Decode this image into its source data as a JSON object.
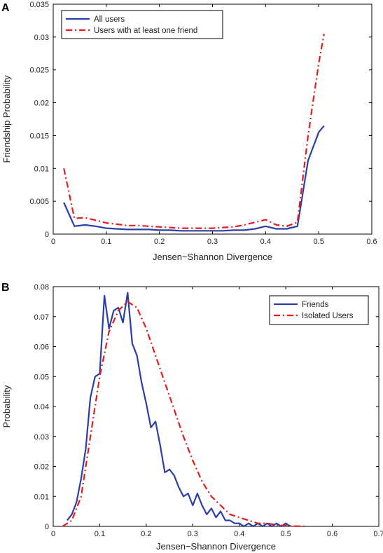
{
  "chart_data": [
    {
      "type": "line",
      "panel_label": "A",
      "xlabel": "Jensen−Shannon Divergence",
      "ylabel": "Friendship Probability",
      "xlim": [
        0,
        0.6
      ],
      "ylim": [
        0,
        0.035
      ],
      "xticks": [
        "0",
        "0.1",
        "0.2",
        "0.3",
        "0.4",
        "0.5",
        "0.6"
      ],
      "yticks": [
        "0",
        "0.005",
        "0.01",
        "0.015",
        "0.02",
        "0.025",
        "0.03",
        "0.035"
      ],
      "legend_position": "top-left",
      "grid": false,
      "series": [
        {
          "name": "All users",
          "color": "#2b3ea8",
          "style": "solid",
          "x": [
            0.02,
            0.04,
            0.06,
            0.08,
            0.1,
            0.12,
            0.14,
            0.16,
            0.18,
            0.2,
            0.22,
            0.24,
            0.26,
            0.28,
            0.3,
            0.32,
            0.34,
            0.36,
            0.38,
            0.4,
            0.42,
            0.44,
            0.46,
            0.48,
            0.5,
            0.51
          ],
          "y": [
            0.0048,
            0.0012,
            0.0014,
            0.0012,
            0.0009,
            0.0008,
            0.0007,
            0.0007,
            0.0007,
            0.0006,
            0.0006,
            0.0005,
            0.0005,
            0.0005,
            0.0005,
            0.0005,
            0.0006,
            0.0006,
            0.0008,
            0.0012,
            0.0008,
            0.0008,
            0.0012,
            0.0112,
            0.0155,
            0.0165
          ]
        },
        {
          "name": "Users with at least one friend",
          "color": "#e01e1e",
          "style": "dashdot",
          "x": [
            0.02,
            0.04,
            0.06,
            0.08,
            0.1,
            0.12,
            0.14,
            0.16,
            0.18,
            0.2,
            0.22,
            0.24,
            0.26,
            0.28,
            0.3,
            0.32,
            0.34,
            0.36,
            0.38,
            0.4,
            0.42,
            0.44,
            0.46,
            0.48,
            0.5,
            0.51
          ],
          "y": [
            0.01,
            0.0024,
            0.0025,
            0.0021,
            0.0017,
            0.0015,
            0.0013,
            0.0013,
            0.0012,
            0.0011,
            0.001,
            0.0009,
            0.0009,
            0.0009,
            0.0009,
            0.001,
            0.0011,
            0.0014,
            0.0018,
            0.0022,
            0.0014,
            0.0012,
            0.0018,
            0.015,
            0.026,
            0.0305
          ]
        }
      ]
    },
    {
      "type": "line",
      "panel_label": "B",
      "xlabel": "Jensen−Shannon Divergence",
      "ylabel": "Probability",
      "xlim": [
        0,
        0.7
      ],
      "ylim": [
        0,
        0.08
      ],
      "xticks": [
        "0",
        "0.1",
        "0.2",
        "0.3",
        "0.4",
        "0.5",
        "0.6",
        "0.7"
      ],
      "yticks": [
        "0",
        "0.01",
        "0.02",
        "0.03",
        "0.04",
        "0.05",
        "0.06",
        "0.07",
        "0.08"
      ],
      "legend_position": "top-right",
      "grid": false,
      "series": [
        {
          "name": "Friends",
          "color": "#2b3ea8",
          "style": "solid",
          "x": [
            0.03,
            0.04,
            0.05,
            0.06,
            0.07,
            0.08,
            0.09,
            0.1,
            0.11,
            0.12,
            0.13,
            0.14,
            0.15,
            0.16,
            0.17,
            0.18,
            0.19,
            0.2,
            0.21,
            0.22,
            0.23,
            0.24,
            0.25,
            0.26,
            0.27,
            0.28,
            0.29,
            0.3,
            0.31,
            0.32,
            0.33,
            0.34,
            0.35,
            0.36,
            0.37,
            0.38,
            0.39,
            0.4,
            0.41,
            0.42,
            0.43,
            0.44,
            0.45,
            0.46,
            0.47,
            0.48,
            0.49,
            0.5,
            0.51
          ],
          "y": [
            0.002,
            0.004,
            0.008,
            0.016,
            0.026,
            0.043,
            0.05,
            0.051,
            0.077,
            0.066,
            0.072,
            0.073,
            0.068,
            0.078,
            0.061,
            0.057,
            0.048,
            0.041,
            0.033,
            0.035,
            0.027,
            0.018,
            0.019,
            0.017,
            0.013,
            0.01,
            0.011,
            0.007,
            0.011,
            0.007,
            0.004,
            0.006,
            0.003,
            0.005,
            0.002,
            0.002,
            0.001,
            0.001,
            0.0,
            0.001,
            0.0,
            0.001,
            0.0,
            0.001,
            0.0,
            0.001,
            0.0,
            0.001,
            0.0
          ]
        },
        {
          "name": "Isolated Users",
          "color": "#e01e1e",
          "style": "dashdot",
          "x": [
            0.02,
            0.04,
            0.06,
            0.08,
            0.1,
            0.12,
            0.14,
            0.16,
            0.18,
            0.2,
            0.22,
            0.24,
            0.26,
            0.28,
            0.3,
            0.32,
            0.34,
            0.36,
            0.38,
            0.4,
            0.42,
            0.44,
            0.46,
            0.48,
            0.5,
            0.52,
            0.54
          ],
          "y": [
            0.0,
            0.002,
            0.01,
            0.03,
            0.05,
            0.065,
            0.072,
            0.075,
            0.073,
            0.066,
            0.057,
            0.048,
            0.039,
            0.03,
            0.022,
            0.015,
            0.01,
            0.007,
            0.004,
            0.003,
            0.002,
            0.001,
            0.001,
            0.0005,
            0.0002,
            0.0001,
            0.0
          ]
        }
      ]
    }
  ]
}
